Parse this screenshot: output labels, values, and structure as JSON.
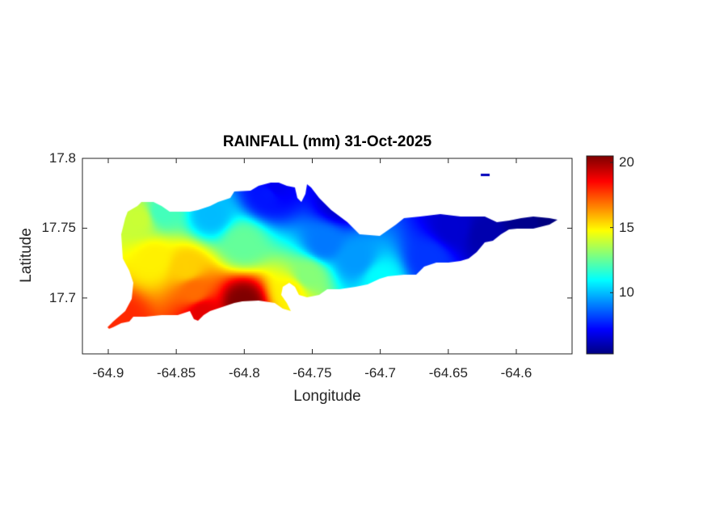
{
  "chart_data": {
    "type": "heatmap",
    "title": "RAINFALL (mm) 31-Oct-2025",
    "xlabel": "Longitude",
    "ylabel": "Latitude",
    "xlim": [
      -64.919,
      -64.559
    ],
    "ylim": [
      17.66,
      17.8
    ],
    "xticks": [
      "-64.9",
      "-64.85",
      "-64.8",
      "-64.75",
      "-64.7",
      "-64.65",
      "-64.6"
    ],
    "xtick_values": [
      -64.9,
      -64.85,
      -64.8,
      -64.75,
      -64.7,
      -64.65,
      -64.6
    ],
    "yticks": [
      "17.8",
      "17.75",
      "17.7"
    ],
    "ytick_values": [
      17.8,
      17.75,
      17.7
    ],
    "colorbar": {
      "colormap": "jet",
      "clim": [
        5.3,
        20.5
      ],
      "ticks": [
        "20",
        "15",
        "10"
      ],
      "tick_values": [
        20,
        15,
        10
      ]
    },
    "grid": false,
    "description_values": {
      "max_region": "south-west (~20.5 mm)",
      "min_region": "east (~5.3 mm)"
    }
  }
}
